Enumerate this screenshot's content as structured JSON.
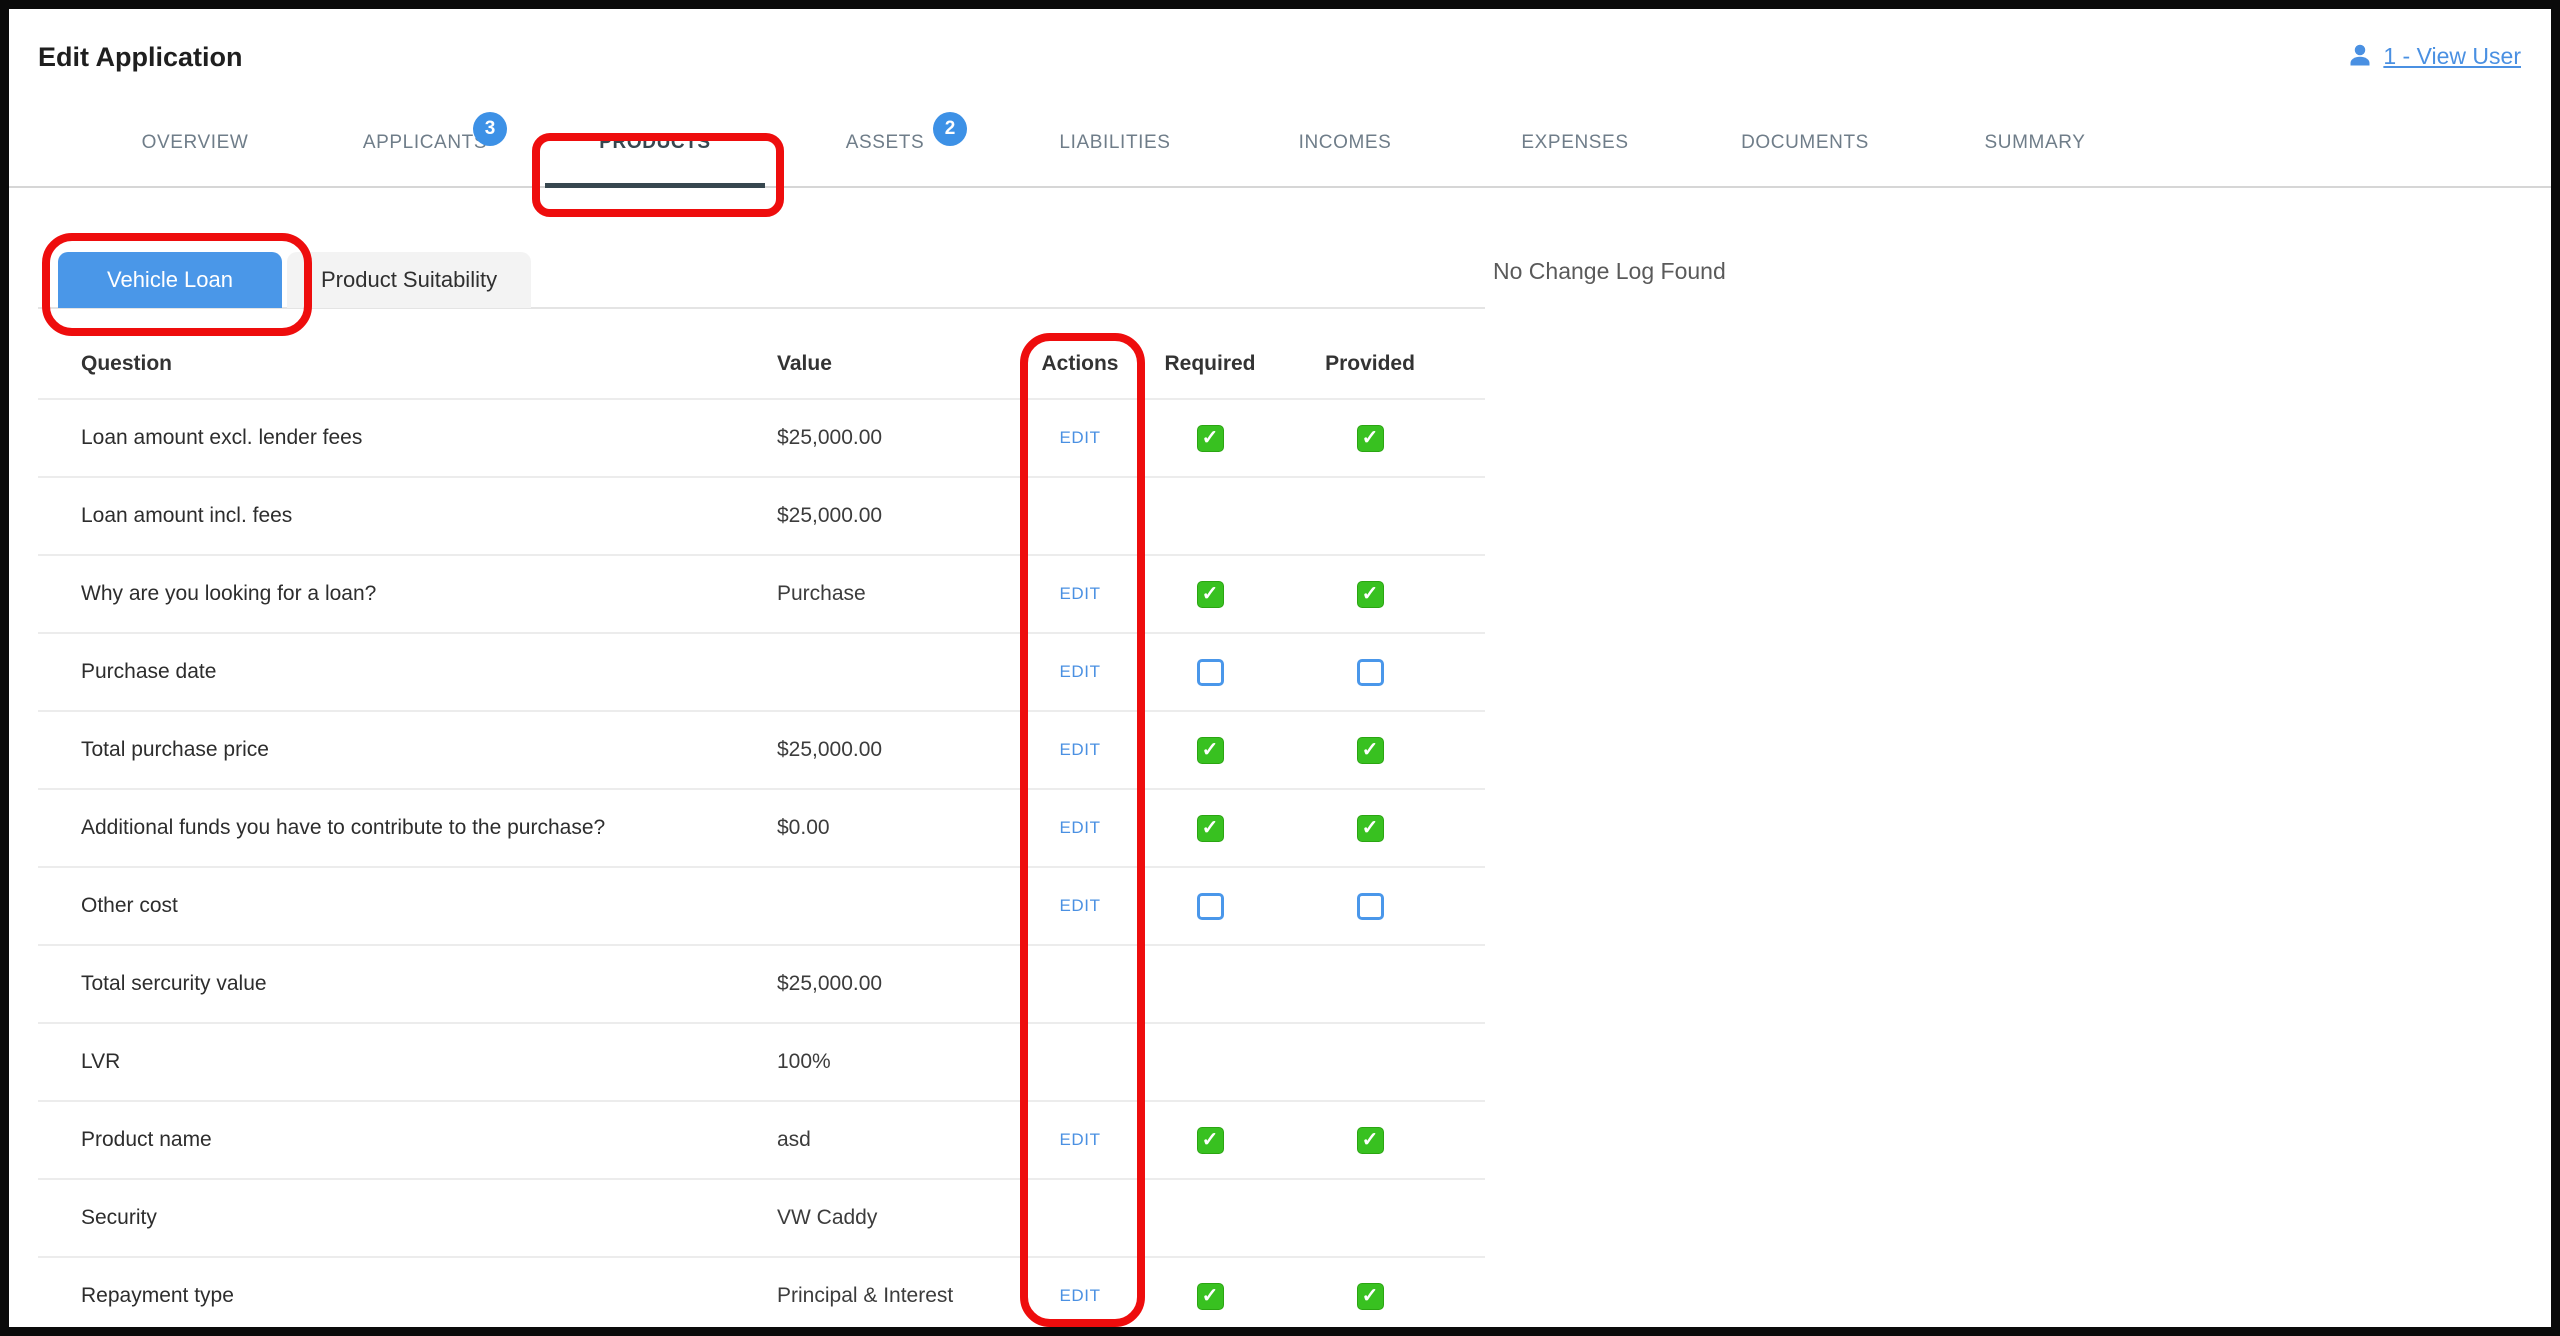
{
  "page": {
    "title": "Edit Application"
  },
  "header": {
    "view_user": {
      "label": "1 - View User",
      "icon": "user-icon"
    }
  },
  "tabs": [
    {
      "label": "OVERVIEW",
      "badge": null,
      "active": false
    },
    {
      "label": "APPLICANTS",
      "badge": "3",
      "active": false
    },
    {
      "label": "PRODUCTS",
      "badge": null,
      "active": true
    },
    {
      "label": "ASSETS",
      "badge": "2",
      "active": false
    },
    {
      "label": "LIABILITIES",
      "badge": null,
      "active": false
    },
    {
      "label": "INCOMES",
      "badge": null,
      "active": false
    },
    {
      "label": "EXPENSES",
      "badge": null,
      "active": false
    },
    {
      "label": "DOCUMENTS",
      "badge": null,
      "active": false
    },
    {
      "label": "SUMMARY",
      "badge": null,
      "active": false
    }
  ],
  "subtabs": [
    {
      "label": "Vehicle Loan",
      "active": true
    },
    {
      "label": "Product Suitability",
      "active": false
    }
  ],
  "change_log": {
    "empty_text": "No Change Log Found"
  },
  "table": {
    "columns": [
      "Question",
      "Value",
      "Actions",
      "Required",
      "Provided"
    ],
    "edit_label": "EDIT",
    "rows": [
      {
        "question": "Loan amount excl. lender fees",
        "value": "$25,000.00",
        "action": "EDIT",
        "required": "checked",
        "provided": "checked"
      },
      {
        "question": "Loan amount incl. fees",
        "value": "$25,000.00",
        "action": null,
        "required": null,
        "provided": null
      },
      {
        "question": "Why are you looking for a loan?",
        "value": "Purchase",
        "action": "EDIT",
        "required": "checked",
        "provided": "checked"
      },
      {
        "question": "Purchase date",
        "value": "",
        "action": "EDIT",
        "required": "unchecked",
        "provided": "unchecked"
      },
      {
        "question": "Total purchase price",
        "value": "$25,000.00",
        "action": "EDIT",
        "required": "checked",
        "provided": "checked"
      },
      {
        "question": "Additional funds you have to contribute to the purchase?",
        "value": "$0.00",
        "action": "EDIT",
        "required": "checked",
        "provided": "checked"
      },
      {
        "question": "Other cost",
        "value": "",
        "action": "EDIT",
        "required": "unchecked",
        "provided": "unchecked"
      },
      {
        "question": "Total sercurity value",
        "value": "$25,000.00",
        "action": null,
        "required": null,
        "provided": null
      },
      {
        "question": "LVR",
        "value": "100%",
        "action": null,
        "required": null,
        "provided": null
      },
      {
        "question": "Product name",
        "value": "asd",
        "action": "EDIT",
        "required": "checked",
        "provided": "checked"
      },
      {
        "question": "Security",
        "value": "VW Caddy",
        "action": null,
        "required": null,
        "provided": null
      },
      {
        "question": "Repayment type",
        "value": "Principal & Interest",
        "action": "EDIT",
        "required": "checked",
        "provided": "checked"
      }
    ]
  },
  "annotations": {
    "color": "#ee0d0d",
    "items": [
      "products-tab-highlight",
      "vehicle-loan-highlight",
      "actions-column-highlight"
    ]
  },
  "colors": {
    "accent_blue": "#4a97e8",
    "link_blue": "#4a90e2",
    "badge_blue": "#3d91e6",
    "check_green": "#38c120",
    "active_tab_dark": "#37474f"
  },
  "glyphs": {
    "check": "✓"
  }
}
